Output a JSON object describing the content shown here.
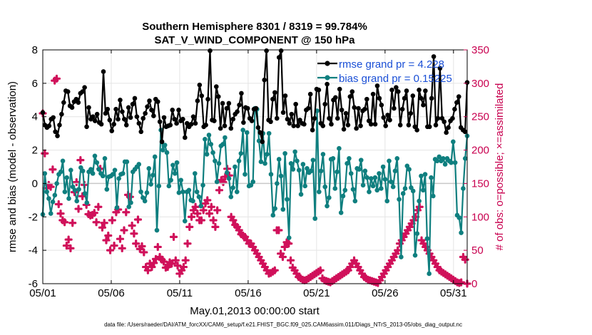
{
  "chart_data": {
    "type": "line",
    "title_line1": "Southern Hemisphere 8301 / 8319 = 99.784%",
    "title_line2": "SAT_V_WIND_COMPONENT @ 150 hPa",
    "xlabel": "May.01,2013 00:00:00 start",
    "ylabel_left": "rmse and bias (model - observation)",
    "ylabel_right": "# of obs: o=possible; ×=assimilated",
    "x_tick_labels": [
      "05/01",
      "05/06",
      "05/11",
      "05/16",
      "05/21",
      "05/26",
      "05/31"
    ],
    "x_tick_days": [
      0,
      5,
      10,
      15,
      20,
      25,
      30
    ],
    "xlim": [
      0,
      31
    ],
    "ylim_left": [
      -6,
      8
    ],
    "y_ticks_left": [
      -6,
      -4,
      -2,
      0,
      2,
      4,
      6,
      8
    ],
    "ylim_right": [
      0,
      350
    ],
    "y_ticks_right": [
      0,
      50,
      100,
      150,
      200,
      250,
      300,
      350
    ],
    "grid": true,
    "legend_position": "top-right",
    "colors": {
      "rmse": "#000000",
      "bias": "#0f7f7f",
      "obs": "#d0105a",
      "zero_line": "#c8c8c8",
      "right_axis": "#c8004f",
      "legend_text": "#1a4fd6"
    },
    "series": [
      {
        "name": "rmse grand pr = 4.228",
        "values": [
          4.25,
          3.5,
          3.35,
          3.45,
          3.85,
          3.95,
          3.1,
          2.85,
          3.5,
          4.15,
          4.85,
          5.55,
          5.5,
          4.65,
          4.55,
          4.9,
          5.05,
          4.85,
          5.4,
          5.5,
          5.75,
          3.4,
          4.55,
          3.85,
          4.0,
          3.75,
          4.15,
          3.65,
          3.55,
          6.7,
          4.2,
          4.45,
          3.8,
          3.15,
          3.55,
          4.45,
          3.85,
          5.0,
          4.3,
          3.85,
          3.5,
          4.55,
          3.95,
          4.75,
          5.1,
          4.0,
          3.6,
          3.1,
          3.9,
          4.2,
          4.6,
          4.95,
          4.4,
          4.05,
          5.05,
          4.9,
          3.7,
          2.5,
          3.95,
          3.4,
          3.45,
          3.5,
          4.4,
          3.85,
          3.6,
          4.4,
          3.75,
          3.85,
          2.75,
          3.6,
          3.4,
          3.55,
          4.0,
          3.6,
          4.95,
          5.9,
          5.25,
          3.4,
          3.5,
          5.05,
          7.95,
          3.8,
          3.75,
          5.8,
          5.2,
          3.3,
          4.8,
          3.45,
          4.5,
          4.8,
          3.3,
          3.85,
          4.15,
          4.3,
          4.7,
          5.4,
          3.65,
          4.55,
          4.5,
          3.9,
          3.75,
          4.45,
          4.5,
          3.35,
          3.05,
          2.5,
          6.2,
          7.95,
          3.8,
          3.7,
          5.05,
          5.45,
          3.9,
          7.55,
          7.95,
          4.25,
          5.25,
          3.85,
          3.6,
          4.15,
          3.45,
          4.75,
          3.45,
          3.8,
          3.6,
          3.55,
          4.4,
          4.5,
          5.35,
          3.2,
          3.9,
          5.65,
          5.6,
          3.6,
          3.45,
          4.75,
          5.95,
          3.9,
          3.55,
          5.0,
          5.15,
          3.9,
          5.65,
          4.4,
          3.25,
          4.2,
          3.5,
          5.2,
          5.5,
          4.55,
          3.3,
          4.5,
          3.45,
          4.35,
          4.45,
          5.05,
          3.75,
          3.55,
          5.35,
          3.55,
          5.85,
          5.1,
          4.7,
          3.95,
          3.45,
          4.1,
          3.8,
          5.6,
          4.5,
          5.75,
          5.5,
          3.5,
          4.45,
          5.1,
          5.55,
          3.5,
          4.2,
          5.25,
          3.4,
          3.2,
          5.6,
          5.1,
          4.7,
          5.55,
          3.4,
          3.4,
          5.1,
          7.6,
          3.5,
          3.9,
          6.9,
          3.9,
          3.7,
          3.05,
          3.35,
          3.75,
          3.9,
          4.45,
          4.85,
          5.2,
          3.35,
          3.2,
          3.1,
          6.05
        ]
      },
      {
        "name": "bias grand pr = 0.15225",
        "values": [
          -1.85,
          0.6,
          -0.5,
          -0.9,
          -1.8,
          -1.1,
          -0.7,
          0.0,
          0.55,
          0.7,
          1.35,
          -0.5,
          0.35,
          -0.9,
          0.8,
          -0.2,
          -0.4,
          -1.05,
          -0.35,
          0.95,
          0.75,
          -0.6,
          -1.15,
          0.7,
          0.85,
          0.6,
          1.65,
          1.25,
          0.85,
          0.6,
          0.45,
          1.5,
          -0.35,
          0.4,
          0.45,
          0.55,
          0.8,
          -1.45,
          0.3,
          0.55,
          0.6,
          1.3,
          1.3,
          -1.4,
          -1.15,
          0.7,
          0.85,
          1.0,
          1.15,
          -0.5,
          -0.85,
          -1.05,
          -0.55,
          0.9,
          -0.05,
          0.5,
          1.6,
          -2.8,
          -0.15,
          3.2,
          2.0,
          2.3,
          1.85,
          -0.15,
          0.2,
          1.1,
          0.6,
          1.25,
          -0.55,
          0.2,
          -0.5,
          -2.25,
          -0.5,
          -0.4,
          -1.0,
          -1.05,
          0.6,
          -0.5,
          -0.8,
          -1.35,
          -0.1,
          2.65,
          1.75,
          2.9,
          2.35,
          1.85,
          1.35,
          0.1,
          1.2,
          2.25,
          2.35,
          2.75,
          0.65,
          0.3,
          -0.8,
          -0.25,
          1.0,
          -0.5,
          1.35,
          1.8,
          3.2,
          0.55,
          3.05,
          -0.15,
          -0.1,
          0.1,
          4.5,
          4.45,
          2.55,
          1.3,
          3.0,
          1.2,
          1.75,
          3.0,
          0.55,
          -1.9,
          -1.5,
          0.0,
          1.45,
          0.45,
          -1.55,
          1.8,
          -0.95,
          -3.25,
          1.2,
          0.85,
          1.9,
          1.35,
          0.8,
          -0.65,
          1.15,
          -0.15,
          0.9,
          0.65,
          0.75,
          1.4,
          -2.1,
          4.35,
          -0.5,
          0.75,
          1.75,
          -0.2,
          -1.35,
          -0.85,
          1.45,
          1.5,
          -0.3,
          0.7,
          2.1,
          -1.75,
          -0.75,
          -0.4,
          1.2,
          1.5,
          0.6,
          -0.35,
          -1.05,
          0.9,
          0.85,
          1.4,
          -0.1,
          0.75,
          0.35,
          -0.5,
          0.3,
          -0.15,
          0.35,
          -0.4,
          0.6,
          -0.3,
          1.0,
          0.25,
          -1.05,
          1.35,
          0.1,
          -0.2,
          0.75,
          1.5,
          -0.95,
          -4.4,
          -0.6,
          -0.3,
          1.05,
          0.85,
          -0.25,
          -0.45,
          -4.3,
          -3.0,
          -1.05,
          0.45,
          -0.4,
          0.55,
          -3.3,
          -5.4,
          0.35,
          -0.75,
          1.45,
          1.35,
          1.6,
          1.35,
          1.5,
          1.15,
          1.5,
          1.35,
          1.25,
          2.5,
          1.25,
          -1.9,
          -2.05,
          -2.95,
          -0.3,
          1.5,
          2.85
        ]
      }
    ],
    "obs_counts": [
      255,
      195,
      143,
      148,
      145,
      171,
      304,
      307,
      119,
      105,
      95,
      92,
      57,
      66,
      53,
      91,
      137,
      152,
      112,
      185,
      131,
      148,
      118,
      104,
      102,
      103,
      106,
      92,
      115,
      172,
      84,
      91,
      65,
      72,
      50,
      95,
      57,
      107,
      111,
      67,
      53,
      80,
      107,
      133,
      130,
      87,
      75,
      60,
      96,
      52,
      56,
      47,
      25,
      20,
      30,
      25,
      31,
      37,
      55,
      40,
      36,
      33,
      24,
      25,
      32,
      30,
      70,
      35,
      27,
      15,
      20,
      25,
      35,
      60,
      85,
      100,
      110,
      115,
      105,
      95,
      95,
      110,
      120,
      125,
      105,
      115,
      95,
      85,
      110,
      140,
      155,
      152,
      160,
      172,
      162,
      100,
      95,
      88,
      85,
      80,
      74,
      72,
      70,
      65,
      60,
      60,
      55,
      50,
      45,
      40,
      35,
      30,
      25,
      20,
      15,
      16,
      18,
      20,
      80,
      80,
      45,
      40,
      55,
      62,
      60,
      35,
      24,
      20,
      15,
      10,
      8,
      6,
      5,
      6,
      8,
      10,
      12,
      14,
      16,
      18,
      20,
      8,
      5,
      4,
      3,
      2,
      4,
      6,
      8,
      10,
      12,
      14,
      16,
      18,
      20,
      25,
      30,
      35,
      30,
      25,
      20,
      15,
      10,
      8,
      6,
      5,
      4,
      3,
      2,
      1,
      5,
      10,
      15,
      20,
      25,
      30,
      35,
      40,
      45,
      50,
      60,
      65,
      70,
      75,
      80,
      85,
      90,
      95,
      100,
      110,
      115,
      65,
      60,
      55,
      50,
      45,
      40,
      35,
      30,
      25,
      20,
      18,
      16,
      14,
      12,
      10,
      8,
      6,
      4,
      2,
      1,
      2,
      40,
      36,
      0
    ]
  },
  "footer": "data file: /Users/raeder/DAI/ATM_forcXX/CAM6_setup/f.e21.FHIST_BGC.f09_025.CAM6assim.011/Diags_NTrS_2013-05/obs_diag_output.nc"
}
